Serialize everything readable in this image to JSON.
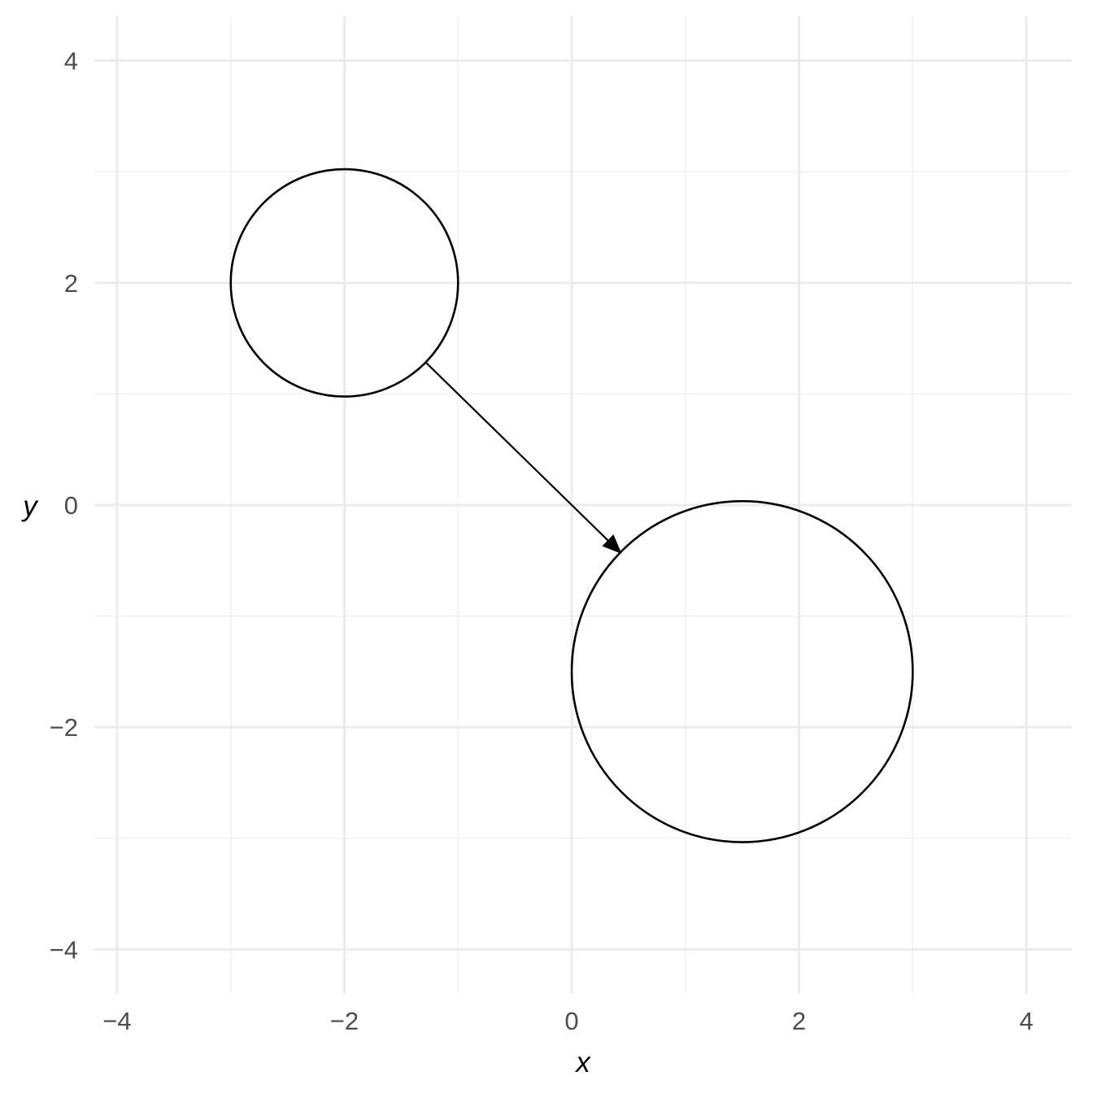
{
  "chart_data": {
    "type": "scatter",
    "xlabel": "x",
    "ylabel": "y",
    "xlim": [
      -4.2,
      4.4
    ],
    "ylim": [
      -4.4,
      4.4
    ],
    "x_ticks": [
      -4,
      -2,
      0,
      2,
      4
    ],
    "y_ticks": [
      -4,
      -2,
      0,
      2,
      4
    ],
    "x_tick_labels": [
      "−4",
      "−2",
      "0",
      "2",
      "4"
    ],
    "y_tick_labels": [
      "−4",
      "−2",
      "0",
      "2",
      "4"
    ],
    "grid": true,
    "circles": [
      {
        "cx": -2,
        "cy": 2,
        "r": 1
      },
      {
        "cx": 1.5,
        "cy": -1.5,
        "r": 1.5
      }
    ],
    "arrows": [
      {
        "from": [
          -1.29,
          1.29
        ],
        "to": [
          0.44,
          -0.44
        ]
      }
    ],
    "colors": {
      "stroke": "#000000",
      "grid": "#ebebeb",
      "tick_text": "#4d4d4d"
    }
  }
}
